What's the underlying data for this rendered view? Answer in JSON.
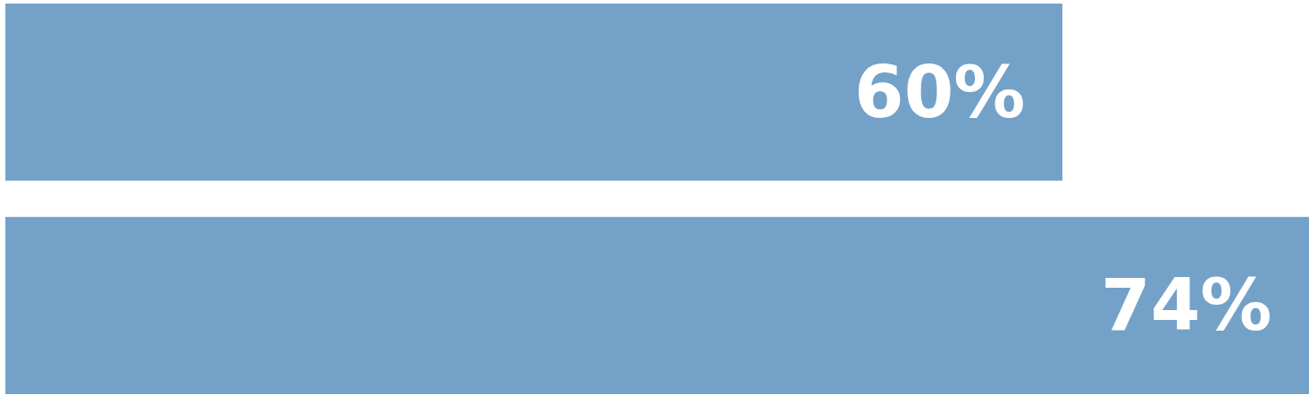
{
  "chart_data": {
    "type": "bar",
    "orientation": "horizontal",
    "categories": [
      null,
      null
    ],
    "values": [
      60,
      74
    ],
    "color": "#74a1c8",
    "value_labels": [
      "60%",
      "74%"
    ],
    "xlim": [
      0,
      74
    ],
    "tick_labels": false
  }
}
